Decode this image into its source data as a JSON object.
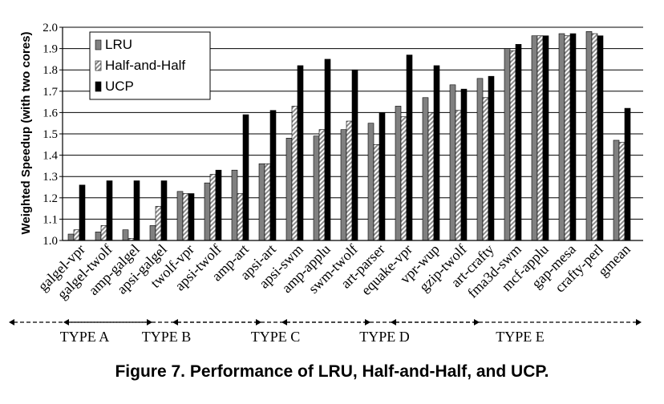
{
  "caption": "Figure 7. Performance of LRU, Half-and-Half, and UCP.",
  "chart_data": {
    "type": "bar",
    "ylabel": "Weighted Speedup (with two cores)",
    "ylim": [
      1.0,
      2.0
    ],
    "yticks": [
      "1.0",
      "1.1",
      "1.2",
      "1.3",
      "1.4",
      "1.5",
      "1.6",
      "1.7",
      "1.8",
      "1.9",
      "2.0"
    ],
    "grid": true,
    "legend_position": "top-left",
    "categories": [
      "galgel-vpr",
      "galgel-twolf",
      "amp-galgel",
      "apsi-galgel",
      "twolf-vpr",
      "apsi-twolf",
      "amp-art",
      "apsi-art",
      "apsi-swm",
      "amp-applu",
      "swm-twolf",
      "art-parser",
      "equake-vpr",
      "vpr-wup",
      "gzip-twolf",
      "art-crafty",
      "fma3d-swm",
      "mcf-applu",
      "gap-mesa",
      "crafty-perl",
      "gmean"
    ],
    "series": [
      {
        "name": "LRU",
        "color": "#808080",
        "values": [
          1.03,
          1.04,
          1.05,
          1.07,
          1.23,
          1.27,
          1.33,
          1.36,
          1.48,
          1.49,
          1.52,
          1.55,
          1.63,
          1.67,
          1.73,
          1.76,
          1.9,
          1.96,
          1.97,
          1.98,
          1.47
        ]
      },
      {
        "name": "Half-and-Half",
        "color": "#c8c8c8",
        "values": [
          1.05,
          1.07,
          1.01,
          1.16,
          1.22,
          1.31,
          1.22,
          1.36,
          1.63,
          1.52,
          1.56,
          1.45,
          1.58,
          1.6,
          1.61,
          1.67,
          1.89,
          1.96,
          1.96,
          1.97,
          1.46
        ]
      },
      {
        "name": "UCP",
        "color": "#000000",
        "values": [
          1.26,
          1.28,
          1.28,
          1.28,
          1.22,
          1.33,
          1.59,
          1.61,
          1.82,
          1.85,
          1.8,
          1.6,
          1.87,
          1.82,
          1.71,
          1.77,
          1.92,
          1.96,
          1.97,
          1.96,
          1.62
        ]
      }
    ],
    "groups": [
      {
        "label": "TYPE A",
        "start": 0,
        "end": 1
      },
      {
        "label": "TYPE B",
        "start": 2,
        "end": 5
      },
      {
        "label": "TYPE C",
        "start": 6,
        "end": 9
      },
      {
        "label": "TYPE D",
        "start": 10,
        "end": 13
      },
      {
        "label": "TYPE E",
        "start": 14,
        "end": 19
      }
    ]
  }
}
